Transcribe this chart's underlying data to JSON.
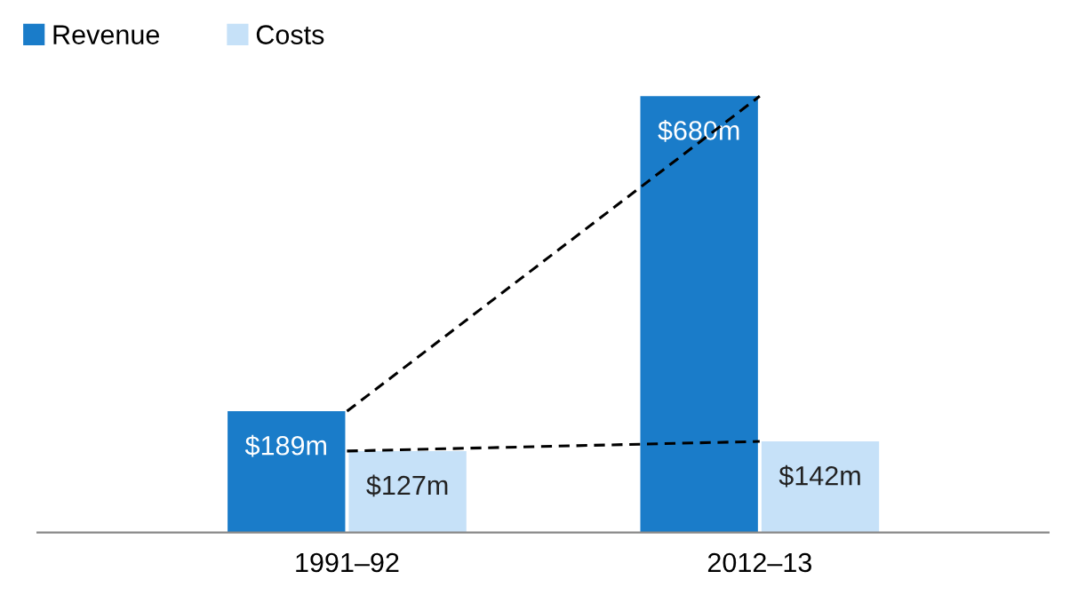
{
  "chart_data": {
    "type": "bar",
    "categories": [
      "1991–92",
      "2012–13"
    ],
    "series": [
      {
        "name": "Revenue",
        "color": "#1a7cc9",
        "values": [
          189,
          680
        ],
        "value_labels": [
          "$189m",
          "$680m"
        ]
      },
      {
        "name": "Costs",
        "color": "#c6e1f8",
        "values": [
          127,
          142
        ],
        "value_labels": [
          "$127m",
          "$142m"
        ]
      },
      {
        "type": "line",
        "color": "#000000",
        "line_style": "dashed",
        "values": [
          189,
          680
        ]
      },
      {
        "type": "line",
        "color": "#000000",
        "line_style": "dashed",
        "values": [
          127,
          142
        ]
      }
    ],
    "legend": "top left",
    "grid": false
  }
}
